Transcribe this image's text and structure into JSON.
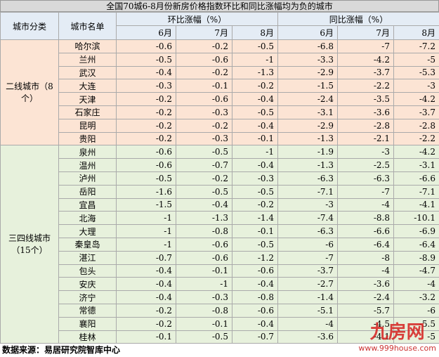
{
  "title": "全国70城6-8月份新房价格指数环比和同比涨幅均为负的城市",
  "header": {
    "category": "城市分类",
    "city": "城市名单",
    "mom": "环比涨幅（%）",
    "yoy": "同比涨幅（%）",
    "months": [
      "6月",
      "7月",
      "8月",
      "6月",
      "7月",
      "8月"
    ]
  },
  "groups": [
    {
      "name": "二线城市（8个）",
      "rows": [
        {
          "city": "哈尔滨",
          "values": [
            -0.6,
            -0.2,
            -0.5,
            -6.8,
            -7,
            -7.2
          ]
        },
        {
          "city": "兰州",
          "values": [
            -0.5,
            -0.6,
            -1,
            -3.3,
            -4.2,
            -5
          ]
        },
        {
          "city": "武汉",
          "values": [
            -0.4,
            -0.2,
            -1.3,
            -2.9,
            -3.7,
            -5.3
          ]
        },
        {
          "city": "大连",
          "values": [
            -0.3,
            -0.1,
            -0.2,
            -1.5,
            -2.2,
            -3
          ]
        },
        {
          "city": "天津",
          "values": [
            -0.2,
            -0.6,
            -0.4,
            -2.4,
            -3.5,
            -4.2
          ]
        },
        {
          "city": "石家庄",
          "values": [
            -0.2,
            -0.3,
            -0.5,
            -3.1,
            -3.6,
            -3.7
          ]
        },
        {
          "city": "昆明",
          "values": [
            -0.2,
            -0.2,
            -0.4,
            -2.9,
            -2.8,
            -2.8
          ]
        },
        {
          "city": "贵阳",
          "values": [
            -0.2,
            -0.3,
            -0.1,
            -1.3,
            -2.1,
            -2.2
          ]
        }
      ]
    },
    {
      "name": "三四线城市（15个）",
      "rows": [
        {
          "city": "泉州",
          "values": [
            -0.6,
            -0.5,
            -1,
            -1.9,
            -3,
            -4.2
          ]
        },
        {
          "city": "温州",
          "values": [
            -0.6,
            -0.7,
            -0.4,
            -1.3,
            -2.5,
            -3.1
          ]
        },
        {
          "city": "泸州",
          "values": [
            -0.5,
            -0.2,
            -0.3,
            -6.3,
            -6.3,
            -6.6
          ]
        },
        {
          "city": "岳阳",
          "values": [
            -1.6,
            -0.5,
            -0.5,
            -7.1,
            -7,
            -7.1
          ]
        },
        {
          "city": "宜昌",
          "values": [
            -1.5,
            -0.4,
            -0.2,
            -3,
            -4,
            -4.1
          ]
        },
        {
          "city": "北海",
          "values": [
            -1,
            -1.3,
            -1.4,
            -7.4,
            -8.8,
            -10.1
          ]
        },
        {
          "city": "大理",
          "values": [
            -1,
            -0.8,
            -0.1,
            -6.3,
            -6.6,
            -6.9
          ]
        },
        {
          "city": "秦皇岛",
          "values": [
            -1,
            -0.6,
            -0.5,
            -6,
            -6.4,
            -6.4
          ]
        },
        {
          "city": "湛江",
          "values": [
            -0.7,
            -0.6,
            -1.2,
            -7,
            -8,
            -8.9
          ]
        },
        {
          "city": "包头",
          "values": [
            -0.4,
            -0.1,
            -0.6,
            -3.7,
            -4,
            -4.7
          ]
        },
        {
          "city": "安庆",
          "values": [
            -0.4,
            -1,
            -0.4,
            -2.7,
            -3.6,
            -4
          ]
        },
        {
          "city": "济宁",
          "values": [
            -0.4,
            -0.3,
            -0.8,
            -1.4,
            -2.4,
            -3.2
          ]
        },
        {
          "city": "常德",
          "values": [
            -0.2,
            -0.8,
            -0.6,
            -5.1,
            -5.7,
            -6
          ]
        },
        {
          "city": "襄阳",
          "values": [
            -0.2,
            -0.1,
            -0.4,
            -4,
            -4.5,
            -5.5
          ]
        },
        {
          "city": "桂林",
          "values": [
            -0.1,
            -0.5,
            -0.7,
            -3.6,
            -4.1,
            -5
          ]
        }
      ]
    }
  ],
  "source": "数据来源：易居研究院智库中心",
  "watermark": {
    "logo": "九房网",
    "url": "www.999house.com"
  }
}
